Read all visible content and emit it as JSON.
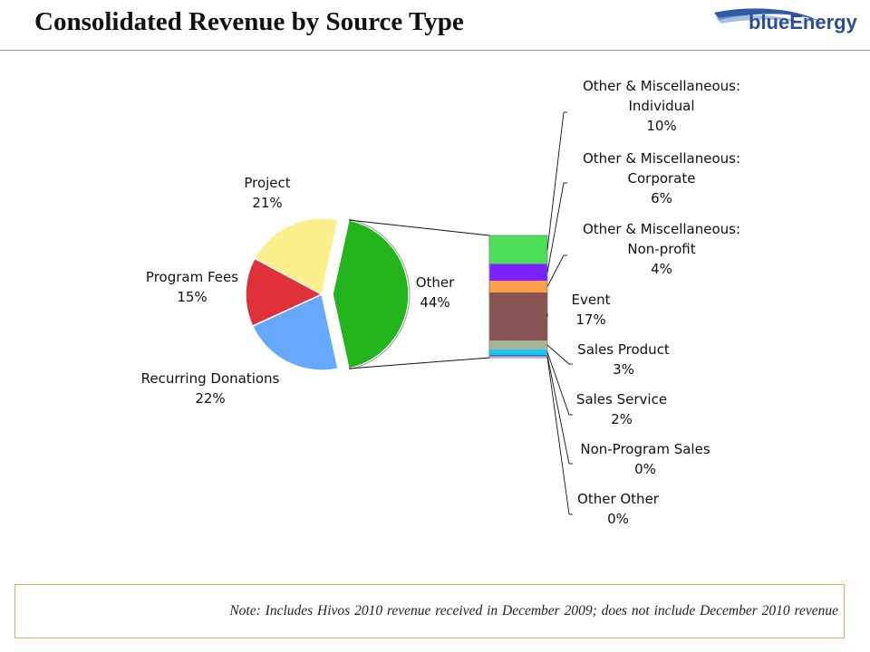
{
  "header": {
    "title": "Consolidated Revenue by Source Type",
    "logo_text": "blueEnergy"
  },
  "note": "Note: Includes Hivos 2010 revenue received in December 2009; does not include December 2010 revenue",
  "chart_data": {
    "type": "pie",
    "pie": {
      "slices": [
        {
          "label": "Other",
          "value": 44,
          "value_label": "44%",
          "color": "#22b51c"
        },
        {
          "label": "Recurring Donations",
          "value": 22,
          "value_label": "22%",
          "color": "#66a8ff"
        },
        {
          "label": "Program Fees",
          "value": 15,
          "value_label": "15%",
          "color": "#e0303a"
        },
        {
          "label": "Project",
          "value": 21,
          "value_label": "21%",
          "color": "#fbef8c"
        }
      ]
    },
    "breakdown": {
      "of": "Other",
      "segments": [
        {
          "label": "Other & Miscellaneous: Individual",
          "lines": [
            "Other & Miscellaneous:",
            "Individual"
          ],
          "value": 10,
          "value_label": "10%",
          "color": "#4cdf58"
        },
        {
          "label": "Other & Miscellaneous: Corporate",
          "lines": [
            "Other & Miscellaneous:",
            "Corporate"
          ],
          "value": 6,
          "value_label": "6%",
          "color": "#7a22ff"
        },
        {
          "label": "Other & Miscellaneous: Non-profit",
          "lines": [
            "Other & Miscellaneous:",
            "Non-profit"
          ],
          "value": 4,
          "value_label": "4%",
          "color": "#ffa048"
        },
        {
          "label": "Event",
          "lines": [
            "Event"
          ],
          "value": 17,
          "value_label": "17%",
          "color": "#8b5454"
        },
        {
          "label": "Sales Product",
          "lines": [
            "Sales Product"
          ],
          "value": 3,
          "value_label": "3%",
          "color": "#a5b493"
        },
        {
          "label": "Sales Service",
          "lines": [
            "Sales Service"
          ],
          "value": 2,
          "value_label": "2%",
          "color": "#1ec4f2"
        },
        {
          "label": "Non-Program Sales",
          "lines": [
            "Non-Program Sales"
          ],
          "value": 0,
          "value_label": "0%",
          "color": "#3a62c4"
        },
        {
          "label": "Other Other",
          "lines": [
            "Other Other"
          ],
          "value": 0,
          "value_label": "0%",
          "color": "#dddddd"
        }
      ]
    },
    "legend": "none"
  }
}
